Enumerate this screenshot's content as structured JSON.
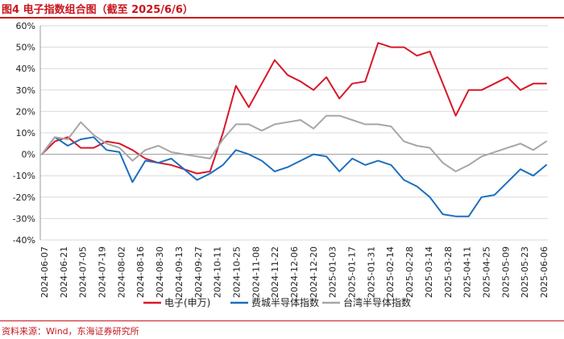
{
  "header": {
    "title": "图4  电子指数组合图（截至 2025/6/6）"
  },
  "footer": {
    "source": "资料来源：Wind，东海证券研究所"
  },
  "chart_data": {
    "type": "line",
    "title": "图4  电子指数组合图（截至 2025/6/6）",
    "xlabel": "",
    "ylabel": "",
    "ylim": [
      -40,
      60
    ],
    "y_ticks": [
      "-40%",
      "-30%",
      "-20%",
      "-10%",
      "0%",
      "10%",
      "20%",
      "30%",
      "40%",
      "50%",
      "60%"
    ],
    "y_tick_values": [
      -40,
      -30,
      -20,
      -10,
      0,
      10,
      20,
      30,
      40,
      50,
      60
    ],
    "x_ticks": [
      "2024-06-07",
      "2024-06-21",
      "2024-07-05",
      "2024-07-19",
      "2024-08-02",
      "2024-08-16",
      "2024-08-30",
      "2024-09-13",
      "2024-09-27",
      "2024-10-11",
      "2024-10-25",
      "2024-11-08",
      "2024-11-22",
      "2024-12-06",
      "2024-12-20",
      "2025-01-03",
      "2025-01-17",
      "2025-01-31",
      "2025-02-14",
      "2025-02-28",
      "2025-03-14",
      "2025-03-28",
      "2025-04-11",
      "2025-04-25",
      "2025-05-09",
      "2025-05-23",
      "2025-06-06"
    ],
    "legend_position": "bottom",
    "series": [
      {
        "name": "电子(申万)",
        "color": "#d7182a",
        "values": [
          0,
          6,
          8,
          3,
          3,
          6,
          5,
          2,
          -2,
          -4,
          -5,
          -7,
          -9,
          -8,
          10,
          32,
          22,
          33,
          44,
          37,
          34,
          30,
          36,
          26,
          33,
          34,
          52,
          50,
          50,
          46,
          48,
          33,
          18,
          30,
          30,
          33,
          36,
          30,
          33,
          33
        ]
      },
      {
        "name": "费城半导体指数",
        "color": "#1c6fbf",
        "values": [
          0,
          8,
          4,
          7,
          8,
          2,
          1,
          -13,
          -3,
          -4,
          -2,
          -7,
          -12,
          -9,
          -5,
          2,
          0,
          -3,
          -8,
          -6,
          -3,
          0,
          -1,
          -8,
          -2,
          -5,
          -3,
          -5,
          -12,
          -15,
          -20,
          -28,
          -29,
          -29,
          -20,
          -19,
          -13,
          -7,
          -10,
          -5
        ]
      },
      {
        "name": "台湾半导体指数",
        "color": "#a6a6a6",
        "values": [
          0,
          8,
          7,
          15,
          9,
          5,
          3,
          -3,
          2,
          4,
          1,
          0,
          -1,
          -2,
          7,
          14,
          14,
          11,
          14,
          15,
          16,
          12,
          18,
          18,
          16,
          14,
          14,
          13,
          6,
          4,
          3,
          -4,
          -8,
          -5,
          -1,
          1,
          3,
          5,
          2,
          6
        ]
      }
    ]
  }
}
